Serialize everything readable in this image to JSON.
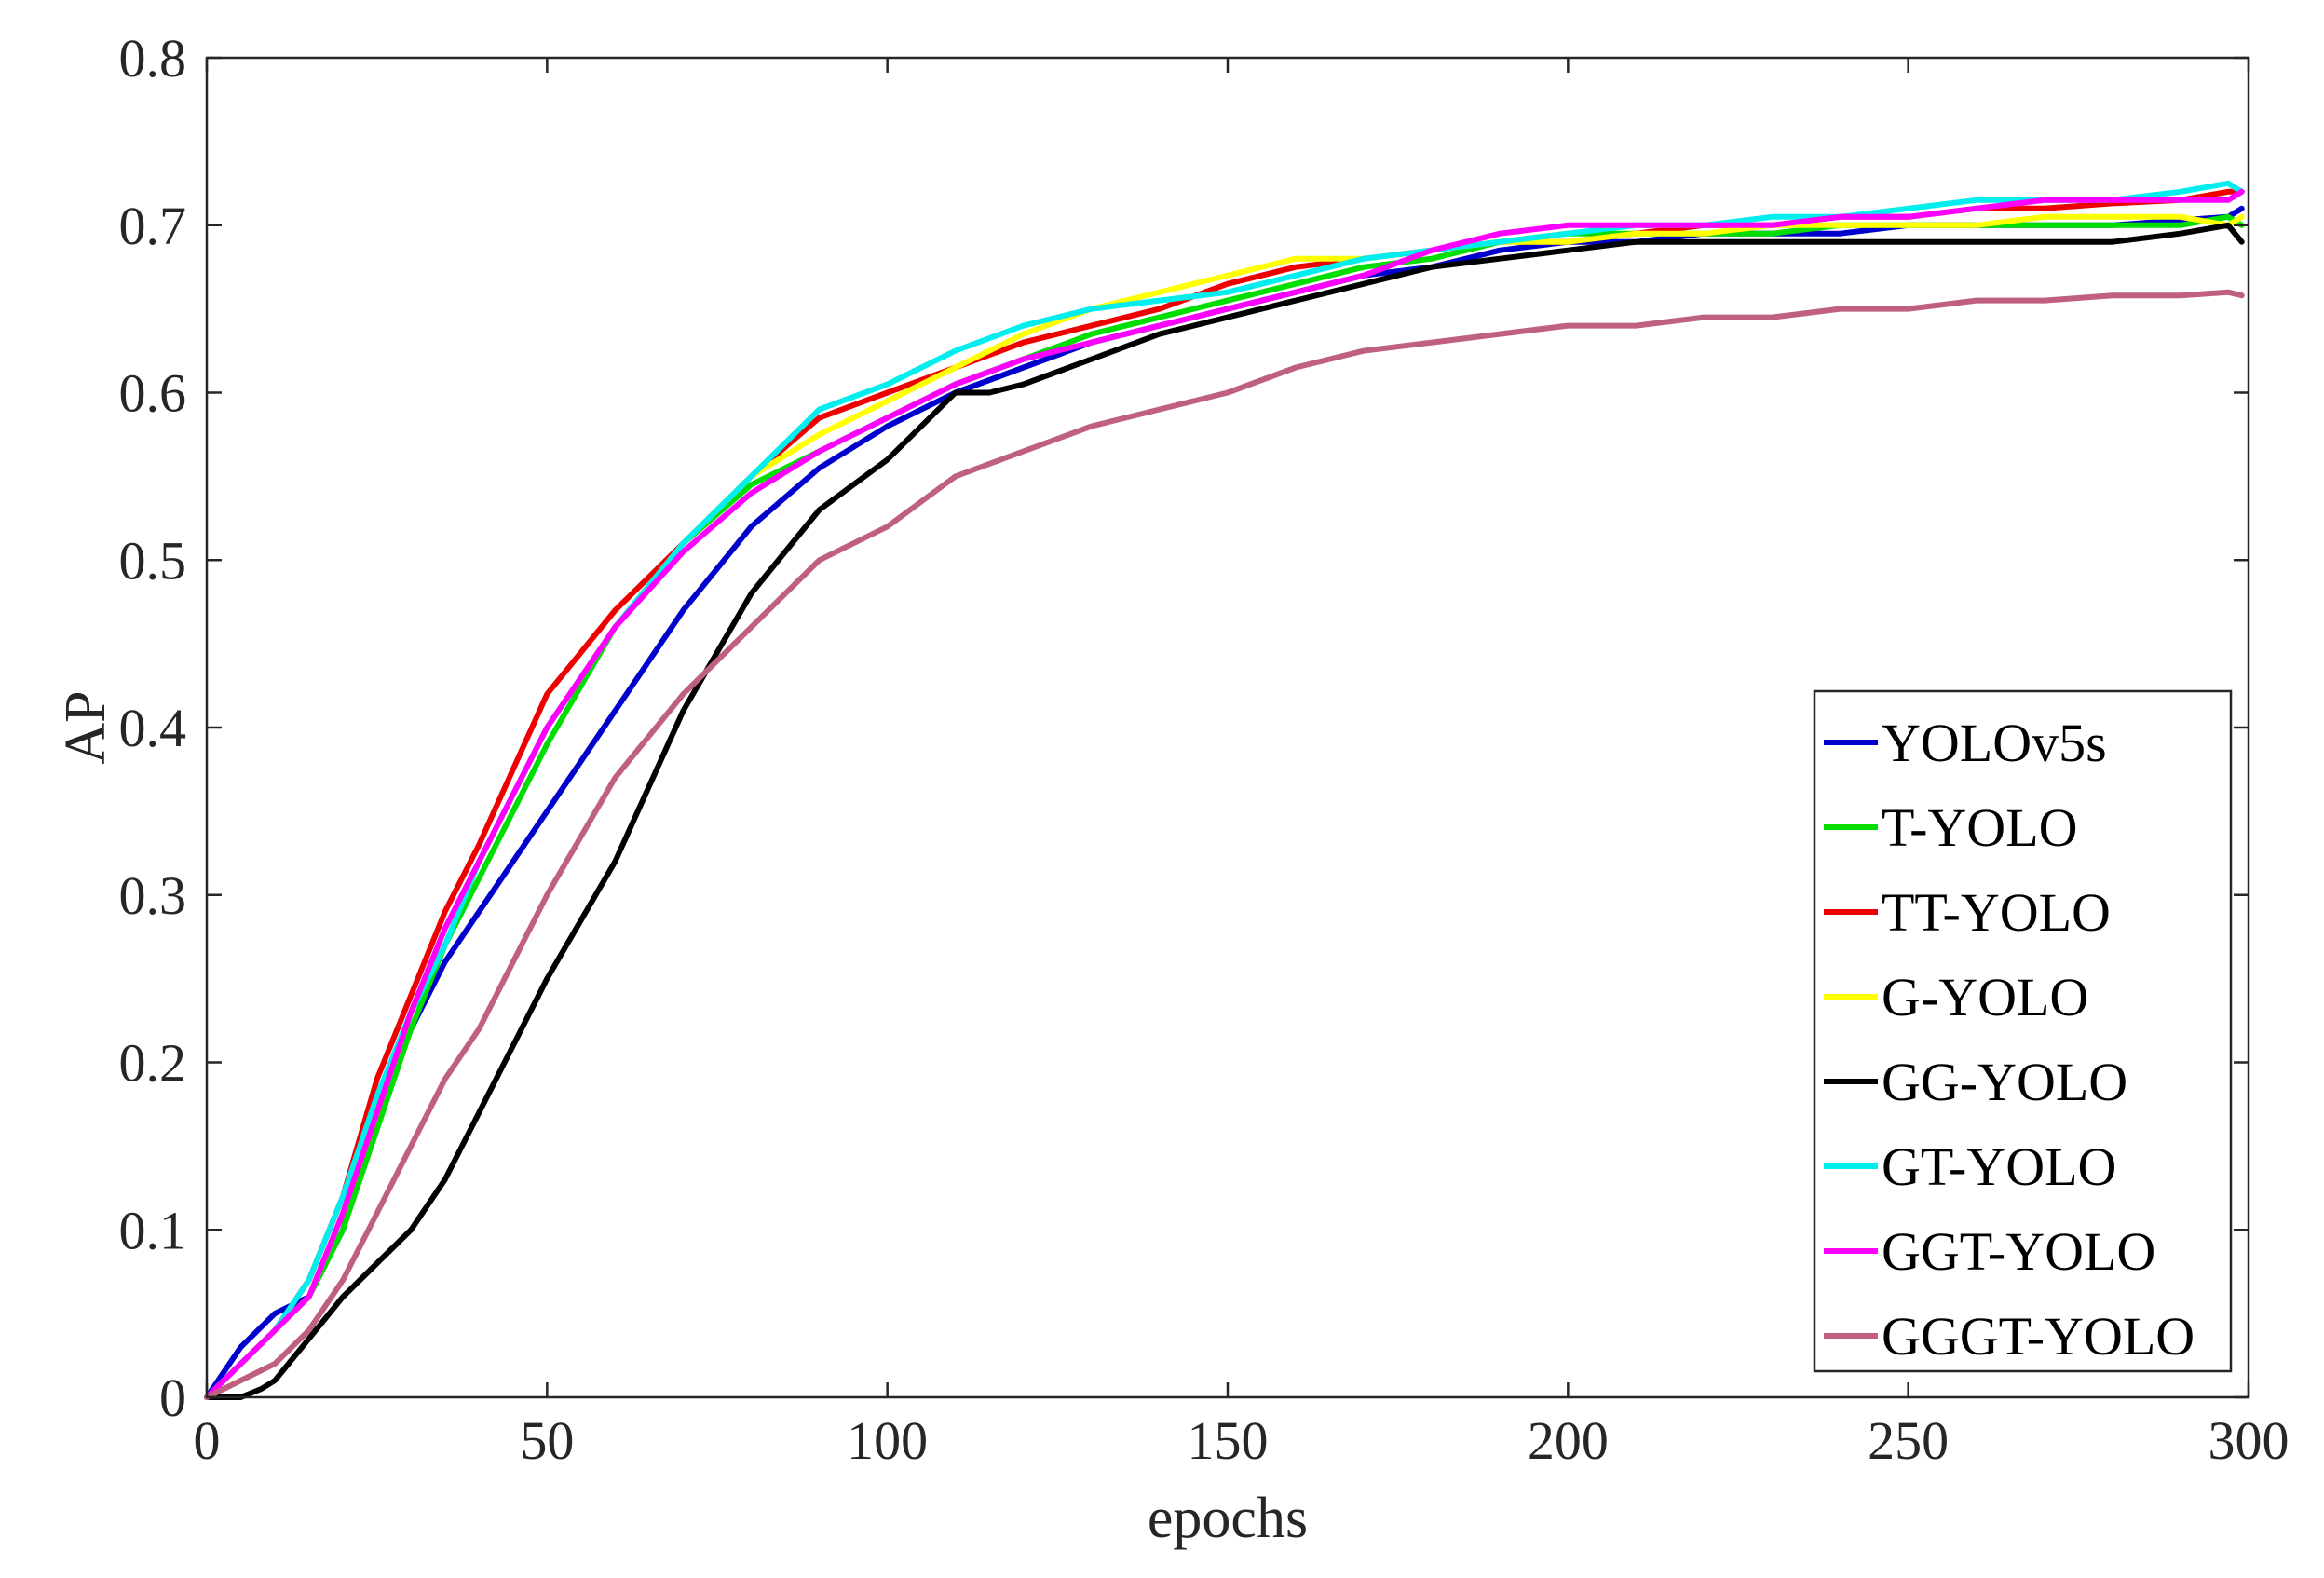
{
  "chart_data": {
    "type": "line",
    "title": "",
    "xlabel": "epochs",
    "ylabel": "AP",
    "xlim": [
      0,
      300
    ],
    "ylim": [
      0,
      0.8
    ],
    "xticks": [
      0,
      50,
      100,
      150,
      200,
      250,
      300
    ],
    "xtick_labels": [
      "0",
      "50",
      "100",
      "150",
      "200",
      "250",
      "300"
    ],
    "yticks": [
      0,
      0.1,
      0.2,
      0.3,
      0.4,
      0.5,
      0.6,
      0.7,
      0.8
    ],
    "ytick_labels": [
      "0",
      "0.1",
      "0.2",
      "0.3",
      "0.4",
      "0.5",
      "0.6",
      "0.7",
      "0.8"
    ],
    "grid": false,
    "legend_position": "bottom-right",
    "series": [
      {
        "name": "YOLOv5s",
        "color": "#0000cc",
        "x": [
          0,
          5,
          10,
          15,
          20,
          25,
          30,
          35,
          40,
          50,
          60,
          70,
          80,
          90,
          100,
          110,
          120,
          130,
          140,
          150,
          160,
          170,
          180,
          190,
          200,
          210,
          220,
          230,
          240,
          250,
          260,
          270,
          280,
          290,
          297,
          299
        ],
        "y": [
          0,
          0.03,
          0.05,
          0.06,
          0.1,
          0.17,
          0.22,
          0.26,
          0.29,
          0.35,
          0.41,
          0.47,
          0.52,
          0.555,
          0.58,
          0.6,
          0.615,
          0.63,
          0.64,
          0.65,
          0.66,
          0.67,
          0.675,
          0.685,
          0.69,
          0.69,
          0.695,
          0.695,
          0.695,
          0.7,
          0.7,
          0.7,
          0.7,
          0.703,
          0.705,
          0.71
        ]
      },
      {
        "name": "T-YOLO",
        "color": "#00dd00",
        "x": [
          0,
          5,
          10,
          15,
          20,
          25,
          30,
          35,
          40,
          50,
          60,
          70,
          80,
          90,
          100,
          110,
          120,
          130,
          140,
          150,
          160,
          170,
          180,
          190,
          200,
          210,
          220,
          230,
          240,
          250,
          260,
          270,
          280,
          290,
          297,
          299
        ],
        "y": [
          0,
          0.02,
          0.04,
          0.06,
          0.1,
          0.16,
          0.22,
          0.27,
          0.31,
          0.39,
          0.46,
          0.51,
          0.545,
          0.565,
          0.585,
          0.605,
          0.62,
          0.635,
          0.645,
          0.655,
          0.665,
          0.675,
          0.68,
          0.69,
          0.695,
          0.695,
          0.695,
          0.695,
          0.7,
          0.7,
          0.7,
          0.7,
          0.7,
          0.7,
          0.705,
          0.7
        ]
      },
      {
        "name": "TT-YOLO",
        "color": "#ee0000",
        "x": [
          0,
          5,
          10,
          15,
          20,
          25,
          30,
          35,
          40,
          50,
          60,
          70,
          80,
          90,
          100,
          110,
          120,
          130,
          140,
          150,
          160,
          170,
          180,
          190,
          200,
          210,
          220,
          230,
          240,
          250,
          260,
          270,
          280,
          290,
          297,
          299
        ],
        "y": [
          0,
          0.02,
          0.04,
          0.07,
          0.12,
          0.19,
          0.24,
          0.29,
          0.33,
          0.42,
          0.47,
          0.51,
          0.55,
          0.585,
          0.6,
          0.615,
          0.63,
          0.64,
          0.65,
          0.665,
          0.675,
          0.68,
          0.685,
          0.69,
          0.69,
          0.695,
          0.7,
          0.7,
          0.705,
          0.705,
          0.71,
          0.71,
          0.713,
          0.715,
          0.72,
          0.72
        ]
      },
      {
        "name": "G-YOLO",
        "color": "#ffff00",
        "x": [
          0,
          5,
          10,
          15,
          20,
          25,
          30,
          35,
          40,
          50,
          60,
          70,
          80,
          90,
          100,
          110,
          120,
          130,
          140,
          150,
          160,
          170,
          180,
          190,
          200,
          210,
          220,
          230,
          240,
          250,
          260,
          270,
          280,
          290,
          297,
          299
        ],
        "y": [
          0,
          0.02,
          0.04,
          0.06,
          0.11,
          0.17,
          0.23,
          0.28,
          0.32,
          0.4,
          0.46,
          0.51,
          0.55,
          0.575,
          0.595,
          0.615,
          0.635,
          0.65,
          0.66,
          0.67,
          0.68,
          0.68,
          0.685,
          0.69,
          0.69,
          0.695,
          0.695,
          0.7,
          0.7,
          0.7,
          0.7,
          0.705,
          0.705,
          0.705,
          0.7,
          0.705
        ]
      },
      {
        "name": "GG-YOLO",
        "color": "#000000",
        "x": [
          0,
          5,
          8,
          10,
          15,
          20,
          25,
          30,
          35,
          40,
          50,
          60,
          70,
          80,
          90,
          100,
          110,
          115,
          120,
          130,
          140,
          150,
          160,
          170,
          180,
          190,
          200,
          210,
          220,
          230,
          240,
          250,
          260,
          270,
          280,
          290,
          297,
          299
        ],
        "y": [
          0,
          0,
          0.005,
          0.01,
          0.035,
          0.06,
          0.08,
          0.1,
          0.13,
          0.17,
          0.25,
          0.32,
          0.41,
          0.48,
          0.53,
          0.56,
          0.6,
          0.6,
          0.605,
          0.62,
          0.635,
          0.645,
          0.655,
          0.665,
          0.675,
          0.68,
          0.685,
          0.69,
          0.69,
          0.69,
          0.69,
          0.69,
          0.69,
          0.69,
          0.69,
          0.695,
          0.7,
          0.69
        ]
      },
      {
        "name": "GT-YOLO",
        "color": "#00eeee",
        "x": [
          0,
          5,
          10,
          15,
          20,
          25,
          30,
          35,
          40,
          50,
          60,
          70,
          80,
          90,
          100,
          110,
          120,
          130,
          140,
          150,
          160,
          170,
          180,
          190,
          200,
          210,
          220,
          230,
          240,
          250,
          260,
          270,
          280,
          290,
          297,
          299
        ],
        "y": [
          0,
          0.02,
          0.04,
          0.07,
          0.12,
          0.18,
          0.23,
          0.27,
          0.32,
          0.4,
          0.46,
          0.51,
          0.55,
          0.59,
          0.605,
          0.625,
          0.64,
          0.65,
          0.655,
          0.66,
          0.67,
          0.68,
          0.685,
          0.69,
          0.695,
          0.7,
          0.7,
          0.705,
          0.705,
          0.71,
          0.715,
          0.715,
          0.715,
          0.72,
          0.725,
          0.72
        ]
      },
      {
        "name": "GGT-YOLO",
        "color": "#ff00ff",
        "x": [
          0,
          5,
          10,
          15,
          20,
          25,
          30,
          35,
          40,
          50,
          60,
          70,
          80,
          90,
          100,
          110,
          120,
          130,
          140,
          150,
          160,
          170,
          180,
          190,
          200,
          210,
          220,
          230,
          240,
          250,
          260,
          270,
          280,
          290,
          297,
          299
        ],
        "y": [
          0,
          0.02,
          0.04,
          0.06,
          0.11,
          0.17,
          0.23,
          0.28,
          0.32,
          0.4,
          0.46,
          0.505,
          0.54,
          0.565,
          0.585,
          0.605,
          0.62,
          0.63,
          0.64,
          0.65,
          0.66,
          0.67,
          0.685,
          0.695,
          0.7,
          0.7,
          0.7,
          0.7,
          0.705,
          0.705,
          0.71,
          0.715,
          0.715,
          0.715,
          0.715,
          0.72
        ]
      },
      {
        "name": "GGGT-YOLO",
        "color": "#c06080",
        "x": [
          0,
          5,
          10,
          15,
          20,
          25,
          30,
          35,
          40,
          50,
          60,
          70,
          80,
          90,
          100,
          110,
          120,
          130,
          140,
          150,
          160,
          170,
          180,
          190,
          200,
          210,
          220,
          230,
          240,
          250,
          260,
          270,
          280,
          290,
          297,
          299
        ],
        "y": [
          0,
          0.01,
          0.02,
          0.04,
          0.07,
          0.11,
          0.15,
          0.19,
          0.22,
          0.3,
          0.37,
          0.42,
          0.46,
          0.5,
          0.52,
          0.55,
          0.565,
          0.58,
          0.59,
          0.6,
          0.615,
          0.625,
          0.63,
          0.635,
          0.64,
          0.64,
          0.645,
          0.645,
          0.65,
          0.65,
          0.655,
          0.655,
          0.658,
          0.658,
          0.66,
          0.658
        ]
      }
    ]
  }
}
